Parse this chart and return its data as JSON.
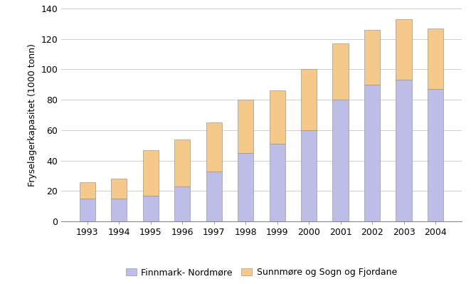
{
  "years": [
    "1993",
    "1994",
    "1995",
    "1996",
    "1997",
    "1998",
    "1999",
    "2000",
    "2001",
    "2002",
    "2003",
    "2004"
  ],
  "finnmark": [
    15,
    15,
    17,
    23,
    33,
    45,
    51,
    60,
    80,
    90,
    93,
    87
  ],
  "sunnmore": [
    11,
    13,
    30,
    31,
    32,
    35,
    35,
    40,
    37,
    36,
    40,
    40
  ],
  "finnmark_color": "#bdbde8",
  "sunnmore_color": "#f5c98a",
  "bar_edge_color": "#888888",
  "ylabel": "Fryselagerkapasitet (1000 tonn)",
  "ylim": [
    0,
    140
  ],
  "yticks": [
    0,
    20,
    40,
    60,
    80,
    100,
    120,
    140
  ],
  "legend_finnmark": "Finnmark- Nordmøre",
  "legend_sunnmore": "Sunnmøre og Sogn og Fjordane",
  "bg_color": "#ffffff",
  "grid_color": "#d0d0d0",
  "label_fontsize": 9,
  "legend_fontsize": 9,
  "tick_fontsize": 9
}
